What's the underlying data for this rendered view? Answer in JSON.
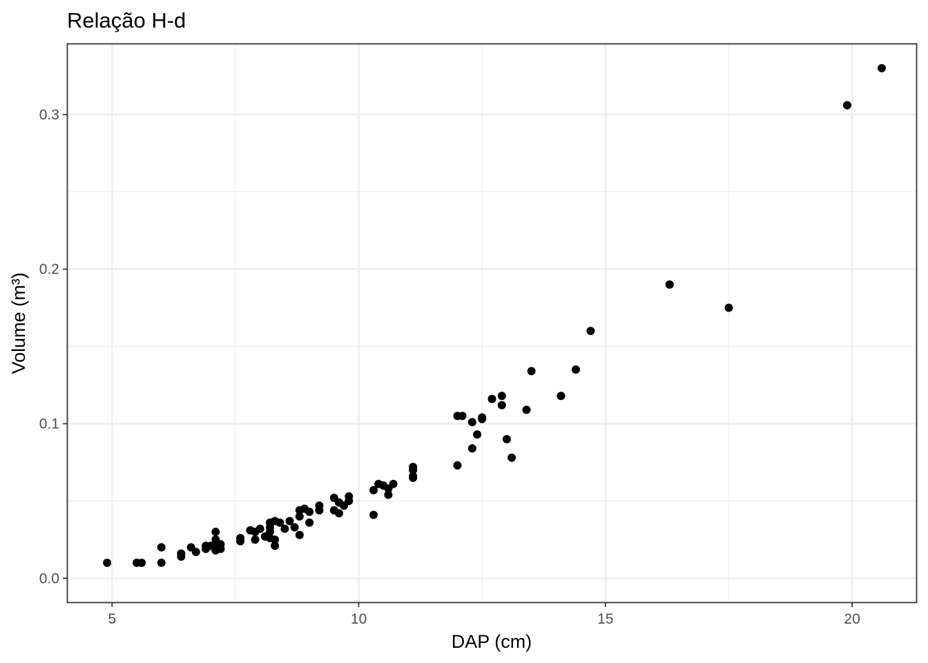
{
  "chart_data": {
    "type": "scatter",
    "title": "Relação H-d",
    "xlabel": "DAP (cm)",
    "ylabel": "Volume (m³)",
    "xlim": [
      4.1,
      21.3
    ],
    "ylim": [
      -0.0155,
      0.3455
    ],
    "x_ticks": [
      5,
      10,
      15,
      20
    ],
    "x_tick_labels": [
      "5",
      "10",
      "15",
      "20"
    ],
    "y_ticks": [
      0.0,
      0.1,
      0.2,
      0.3
    ],
    "y_tick_labels": [
      "0.0",
      "0.1",
      "0.2",
      "0.3"
    ],
    "grid": true,
    "theme": "bw",
    "point_color": "#000000",
    "points": [
      {
        "x": 4.9,
        "y": 0.01
      },
      {
        "x": 5.5,
        "y": 0.01
      },
      {
        "x": 5.6,
        "y": 0.01
      },
      {
        "x": 6.0,
        "y": 0.01
      },
      {
        "x": 6.0,
        "y": 0.02
      },
      {
        "x": 6.4,
        "y": 0.014
      },
      {
        "x": 6.4,
        "y": 0.016
      },
      {
        "x": 6.6,
        "y": 0.02
      },
      {
        "x": 6.7,
        "y": 0.017
      },
      {
        "x": 6.9,
        "y": 0.019
      },
      {
        "x": 6.9,
        "y": 0.021
      },
      {
        "x": 7.0,
        "y": 0.021
      },
      {
        "x": 7.1,
        "y": 0.018
      },
      {
        "x": 7.1,
        "y": 0.02
      },
      {
        "x": 7.1,
        "y": 0.025
      },
      {
        "x": 7.1,
        "y": 0.03
      },
      {
        "x": 7.2,
        "y": 0.019
      },
      {
        "x": 7.2,
        "y": 0.022
      },
      {
        "x": 7.6,
        "y": 0.024
      },
      {
        "x": 7.6,
        "y": 0.026
      },
      {
        "x": 7.8,
        "y": 0.031
      },
      {
        "x": 7.9,
        "y": 0.025
      },
      {
        "x": 7.9,
        "y": 0.03
      },
      {
        "x": 8.0,
        "y": 0.032
      },
      {
        "x": 8.1,
        "y": 0.027
      },
      {
        "x": 8.2,
        "y": 0.026
      },
      {
        "x": 8.2,
        "y": 0.03
      },
      {
        "x": 8.2,
        "y": 0.033
      },
      {
        "x": 8.2,
        "y": 0.036
      },
      {
        "x": 8.3,
        "y": 0.021
      },
      {
        "x": 8.3,
        "y": 0.025
      },
      {
        "x": 8.3,
        "y": 0.037
      },
      {
        "x": 8.4,
        "y": 0.036
      },
      {
        "x": 8.5,
        "y": 0.032
      },
      {
        "x": 8.6,
        "y": 0.037
      },
      {
        "x": 8.7,
        "y": 0.033
      },
      {
        "x": 8.8,
        "y": 0.028
      },
      {
        "x": 8.8,
        "y": 0.04
      },
      {
        "x": 8.8,
        "y": 0.044
      },
      {
        "x": 8.9,
        "y": 0.045
      },
      {
        "x": 9.0,
        "y": 0.036
      },
      {
        "x": 9.0,
        "y": 0.043
      },
      {
        "x": 9.2,
        "y": 0.044
      },
      {
        "x": 9.2,
        "y": 0.047
      },
      {
        "x": 9.5,
        "y": 0.044
      },
      {
        "x": 9.5,
        "y": 0.052
      },
      {
        "x": 9.6,
        "y": 0.042
      },
      {
        "x": 9.6,
        "y": 0.049
      },
      {
        "x": 9.7,
        "y": 0.047
      },
      {
        "x": 9.8,
        "y": 0.05
      },
      {
        "x": 9.8,
        "y": 0.053
      },
      {
        "x": 10.3,
        "y": 0.041
      },
      {
        "x": 10.3,
        "y": 0.057
      },
      {
        "x": 10.4,
        "y": 0.061
      },
      {
        "x": 10.5,
        "y": 0.06
      },
      {
        "x": 10.6,
        "y": 0.054
      },
      {
        "x": 10.6,
        "y": 0.058
      },
      {
        "x": 10.7,
        "y": 0.061
      },
      {
        "x": 11.1,
        "y": 0.065
      },
      {
        "x": 11.1,
        "y": 0.066
      },
      {
        "x": 11.1,
        "y": 0.07
      },
      {
        "x": 11.1,
        "y": 0.072
      },
      {
        "x": 12.0,
        "y": 0.073
      },
      {
        "x": 12.0,
        "y": 0.105
      },
      {
        "x": 12.1,
        "y": 0.105
      },
      {
        "x": 12.3,
        "y": 0.084
      },
      {
        "x": 12.3,
        "y": 0.101
      },
      {
        "x": 12.4,
        "y": 0.093
      },
      {
        "x": 12.5,
        "y": 0.103
      },
      {
        "x": 12.5,
        "y": 0.104
      },
      {
        "x": 12.7,
        "y": 0.116
      },
      {
        "x": 12.9,
        "y": 0.112
      },
      {
        "x": 12.9,
        "y": 0.118
      },
      {
        "x": 13.0,
        "y": 0.09
      },
      {
        "x": 13.1,
        "y": 0.078
      },
      {
        "x": 13.4,
        "y": 0.109
      },
      {
        "x": 13.5,
        "y": 0.134
      },
      {
        "x": 14.1,
        "y": 0.118
      },
      {
        "x": 14.4,
        "y": 0.135
      },
      {
        "x": 14.7,
        "y": 0.16
      },
      {
        "x": 16.3,
        "y": 0.19
      },
      {
        "x": 17.5,
        "y": 0.175
      },
      {
        "x": 19.9,
        "y": 0.306
      },
      {
        "x": 20.6,
        "y": 0.33
      }
    ]
  }
}
